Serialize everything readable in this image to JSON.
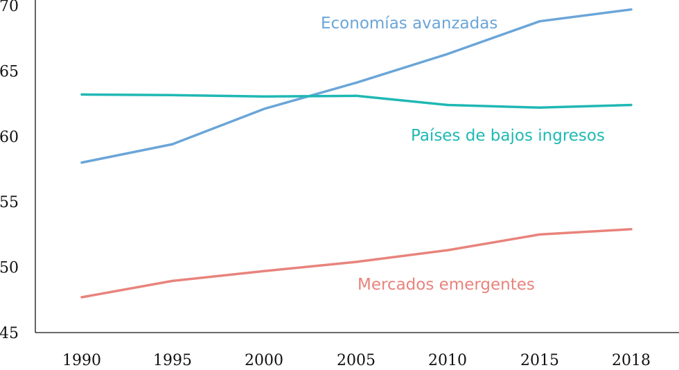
{
  "chart_data": {
    "type": "line",
    "title": "",
    "xlabel": "",
    "ylabel": "",
    "x": [
      1990,
      1995,
      2000,
      2005,
      2010,
      2015,
      2018
    ],
    "x_tick_labels": [
      "1990",
      "1995",
      "2000",
      "2005",
      "2010",
      "2015",
      "2018"
    ],
    "ylim": [
      45,
      70
    ],
    "y_ticks": [
      45,
      50,
      55,
      60,
      65,
      70
    ],
    "y_tick_labels": [
      "45",
      "50",
      "55",
      "60",
      "65",
      "70"
    ],
    "grid": false,
    "legend": "none (direct labels)",
    "series": [
      {
        "name": "Economías avanzadas",
        "color": "#6aa5d8",
        "values": [
          58.0,
          59.4,
          62.1,
          64.1,
          66.3,
          68.8,
          69.7
        ]
      },
      {
        "name": "Países de bajos ingresos",
        "color": "#1fb8b4",
        "values": [
          63.2,
          63.15,
          63.05,
          63.1,
          62.4,
          62.2,
          62.4
        ]
      },
      {
        "name": "Mercados emergentes",
        "color": "#e8837c",
        "values": [
          47.7,
          48.95,
          49.7,
          50.4,
          51.3,
          52.5,
          52.9
        ]
      }
    ]
  }
}
